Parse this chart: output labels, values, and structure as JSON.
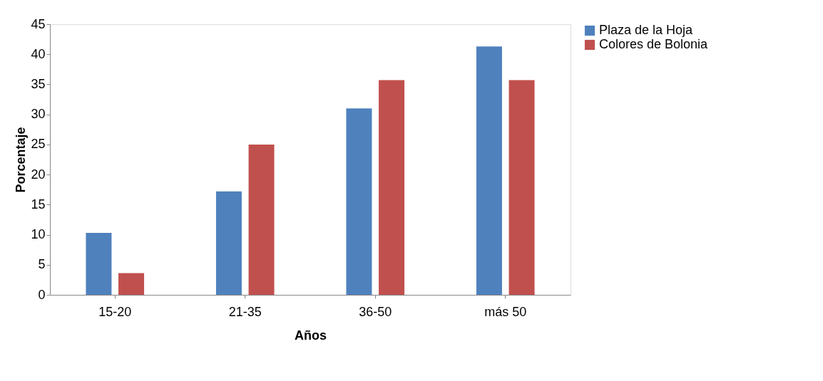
{
  "chart_data": {
    "type": "bar",
    "xlabel": "Años",
    "ylabel": "Porcentaje",
    "categories": [
      "15-20",
      "21-35",
      "36-50",
      "más 50"
    ],
    "series": [
      {
        "name": "Plaza de la Hoja",
        "color": "#4f81bd",
        "values": [
          10.3,
          17.2,
          31.0,
          41.3
        ]
      },
      {
        "name": "Colores de Bolonia",
        "color": "#c0504d",
        "values": [
          3.6,
          25.0,
          35.7,
          35.7
        ]
      }
    ],
    "ylim": [
      0,
      45
    ],
    "yticks": [
      0,
      5,
      10,
      15,
      20,
      25,
      30,
      35,
      40,
      45
    ],
    "grid": false,
    "legend": "right"
  }
}
